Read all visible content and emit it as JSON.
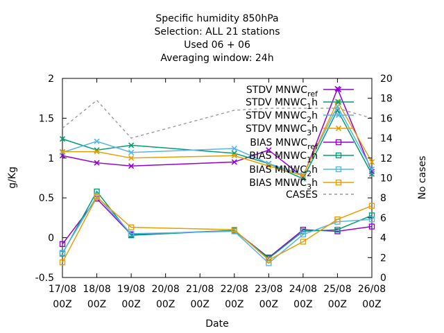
{
  "chart_data": {
    "type": "line",
    "title_lines": [
      "Specific humidity 850hPa",
      "Selection: ALL      21 stations",
      "Used  06 + 06",
      "Averaging window: 24h"
    ],
    "xlabel": "Date",
    "ylabel": "g/Kg",
    "y2label": "No cases",
    "x": [
      [
        "17/08",
        "00Z"
      ],
      [
        "18/08",
        "00Z"
      ],
      [
        "19/08",
        "00Z"
      ],
      [
        "20/08",
        "00Z"
      ],
      [
        "21/08",
        "00Z"
      ],
      [
        "22/08",
        "00Z"
      ],
      [
        "23/08",
        "00Z"
      ],
      [
        "24/08",
        "00Z"
      ],
      [
        "25/08",
        "00Z"
      ],
      [
        "26/08",
        "00Z"
      ]
    ],
    "ylim": [
      -0.5,
      2
    ],
    "yticks": [
      "-0.5",
      "0",
      "0.5",
      "1",
      "1.5",
      "2"
    ],
    "y2lim": [
      0,
      20
    ],
    "y2ticks": [
      "0",
      "2",
      "4",
      "6",
      "8",
      "10",
      "12",
      "14",
      "16",
      "18",
      "20"
    ],
    "grid": false,
    "legend_position": "top-right",
    "series": [
      {
        "name_main": "STDV MNWC",
        "name_sub": "ref",
        "color": "#9400d3",
        "marker": "x",
        "axis": "y1",
        "values": [
          1.03,
          0.94,
          0.9,
          null,
          null,
          0.95,
          1.1,
          0.76,
          1.87,
          0.83
        ]
      },
      {
        "name_main": "STDV MNWC",
        "name_sub": "1",
        "name_tail": "h",
        "color": "#009e73",
        "marker": "x",
        "axis": "y1",
        "values": [
          1.24,
          1.1,
          1.16,
          null,
          null,
          1.06,
          0.93,
          0.74,
          1.6,
          0.8
        ]
      },
      {
        "name_main": "STDV MNWC",
        "name_sub": "2",
        "name_tail": "h",
        "color": "#56b4e9",
        "marker": "x",
        "axis": "y1",
        "values": [
          1.07,
          1.21,
          1.07,
          null,
          null,
          1.12,
          0.93,
          0.79,
          1.65,
          0.86
        ]
      },
      {
        "name_main": "STDV MNWC",
        "name_sub": "3",
        "name_tail": "h",
        "color": "#e69f00",
        "marker": "x",
        "axis": "y1",
        "values": [
          1.08,
          1.08,
          1.0,
          null,
          null,
          1.03,
          0.9,
          0.78,
          1.71,
          0.95
        ]
      },
      {
        "name_main": "BIAS MNWC",
        "name_sub": "ref",
        "color": "#9400d3",
        "marker": "square",
        "axis": "y1",
        "values": [
          -0.08,
          0.49,
          0.04,
          null,
          null,
          0.09,
          -0.25,
          0.1,
          0.08,
          0.14
        ]
      },
      {
        "name_main": "BIAS MNWC",
        "name_sub": "1",
        "name_tail": "h",
        "color": "#009e73",
        "marker": "square",
        "axis": "y1",
        "values": [
          -0.2,
          0.58,
          0.03,
          null,
          null,
          0.09,
          -0.26,
          0.08,
          0.1,
          0.28
        ]
      },
      {
        "name_main": "BIAS MNWC",
        "name_sub": "2",
        "name_tail": "h",
        "color": "#56b4e9",
        "marker": "square",
        "axis": "y1",
        "values": [
          -0.19,
          0.52,
          0.05,
          null,
          null,
          0.08,
          -0.32,
          0.04,
          0.2,
          0.23
        ]
      },
      {
        "name_main": "BIAS MNWC",
        "name_sub": "3",
        "name_tail": "h",
        "color": "#e69f00",
        "marker": "square",
        "axis": "y1",
        "values": [
          -0.31,
          0.51,
          0.13,
          null,
          null,
          0.1,
          -0.28,
          -0.05,
          0.23,
          0.4
        ]
      },
      {
        "name_main": "CASES",
        "color": "#999999",
        "marker": "none",
        "dashed": true,
        "axis": "y2",
        "values": [
          15.0,
          17.8,
          14.0,
          null,
          null,
          16.8,
          17.0,
          17.0,
          17.0,
          16.0
        ]
      }
    ]
  }
}
